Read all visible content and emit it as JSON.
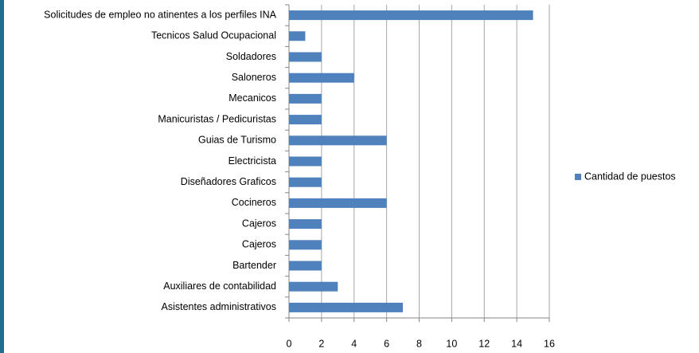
{
  "chart_data": {
    "type": "barh",
    "categories": [
      "Solicitudes de empleo no atinentes a los perfiles INA",
      "Tecnicos Salud Ocupacional",
      "Soldadores",
      "Saloneros",
      "Mecanicos",
      "Manicuristas / Pedicuristas",
      "Guias de Turismo",
      "Electricista",
      "Diseñadores Graficos",
      "Cocineros",
      "Cajeros",
      "Cajeros",
      "Bartender",
      "Auxiliares de contabilidad",
      "Asistentes administrativos"
    ],
    "series": [
      {
        "name": "Cantidad de puestos",
        "color": "#4f81bd",
        "values": [
          15,
          1,
          2,
          4,
          2,
          2,
          6,
          2,
          2,
          6,
          2,
          2,
          2,
          3,
          7
        ]
      }
    ],
    "xlim": [
      0,
      16
    ],
    "xticks": [
      0,
      2,
      4,
      6,
      8,
      10,
      12,
      14,
      16
    ],
    "grid": true,
    "legend": "right"
  }
}
